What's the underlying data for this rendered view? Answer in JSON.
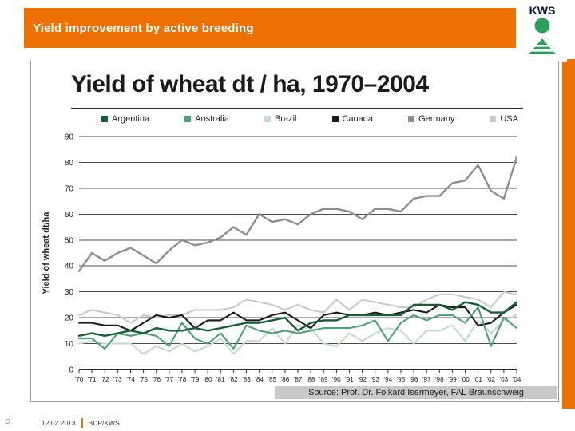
{
  "slide": {
    "header": {
      "title": "Yield improvement by active breeding"
    },
    "logo": {
      "text": "KWS"
    },
    "footer": {
      "page_number": "5",
      "date": "12.02.2013",
      "department": "BDP/KWS"
    }
  },
  "colors": {
    "accent_orange": "#ED7102",
    "logo_green": "#2F9C5C",
    "source_strip_gray": "#C9C9C9"
  },
  "chart_data": {
    "type": "line",
    "title": "Yield of wheat dt / ha, 1970–2004",
    "ylabel": "Yield of wheat dt/ha",
    "source": "Source: Prof. Dr. Folkard Isermeyer, FAL Braunschweig",
    "ylim": [
      0,
      90
    ],
    "yticks": [
      0,
      10,
      20,
      30,
      40,
      50,
      60,
      70,
      80,
      90
    ],
    "grid": "horizontal",
    "legend_position": "top",
    "xtick_labels": [
      "'70",
      "'71",
      "'72",
      "'73",
      "'74",
      "'75",
      "'76",
      "'77",
      "'78",
      "'79",
      "'80",
      "'81",
      "'82",
      "'83",
      "'84",
      "'85",
      "'86",
      "'87",
      "'88",
      "'89",
      "'90",
      "'91",
      "'92",
      "'93",
      "'94",
      "'95",
      "'96",
      "'97",
      "'98",
      "'99",
      "'00",
      "'01",
      "'02",
      "'03",
      "'04"
    ],
    "series": [
      {
        "name": "Argentina",
        "color": "#175C35",
        "stroke_width": 2.4,
        "values": [
          13,
          14,
          13,
          14,
          15,
          14,
          16,
          15,
          15,
          16,
          15,
          16,
          17,
          18,
          18,
          19,
          20,
          15,
          18,
          19,
          19,
          21,
          21,
          21,
          21,
          21,
          25,
          25,
          25,
          23,
          26,
          25,
          22,
          22,
          26
        ]
      },
      {
        "name": "Australia",
        "color": "#4F9F7B",
        "stroke_width": 2.1,
        "values": [
          12,
          12,
          8,
          14,
          13,
          14,
          13,
          9,
          18,
          12,
          10,
          14,
          8,
          17,
          15,
          14,
          15,
          14,
          15,
          16,
          16,
          16,
          17,
          19,
          11,
          18,
          21,
          19,
          21,
          21,
          18,
          24,
          9,
          20,
          16
        ]
      },
      {
        "name": "Brazil",
        "color": "#C7D9CD",
        "stroke_width": 2.1,
        "values": [
          10,
          11,
          10,
          10,
          10,
          6,
          9,
          7,
          10,
          7,
          9,
          12,
          6,
          11,
          11,
          16,
          10,
          17,
          16,
          10,
          9,
          14,
          11,
          14,
          16,
          15,
          10,
          15,
          15,
          17,
          11,
          19,
          14,
          19,
          21
        ]
      },
      {
        "name": "Canada",
        "color": "#1A1A1A",
        "stroke_width": 2.1,
        "values": [
          18,
          18,
          17,
          17,
          15,
          18,
          21,
          20,
          21,
          16,
          19,
          19,
          22,
          19,
          19,
          21,
          22,
          19,
          16,
          21,
          22,
          21,
          21,
          22,
          21,
          22,
          23,
          22,
          25,
          24,
          24,
          17,
          18,
          22,
          25
        ]
      },
      {
        "name": "Germany",
        "color": "#8F8F8F",
        "stroke_width": 2.4,
        "values": [
          38,
          45,
          42,
          45,
          47,
          44,
          41,
          46,
          50,
          48,
          49,
          51,
          55,
          52,
          60,
          57,
          58,
          56,
          60,
          62,
          62,
          61,
          58,
          62,
          62,
          61,
          66,
          67,
          67,
          72,
          73,
          79,
          69,
          66,
          82
        ]
      },
      {
        "name": "USA",
        "color": "#C9C9C9",
        "stroke_width": 2.1,
        "values": [
          21,
          23,
          22,
          21,
          18,
          21,
          20,
          21,
          21,
          23,
          23,
          23,
          24,
          27,
          26,
          25,
          23,
          25,
          23,
          22,
          27,
          23,
          27,
          26,
          25,
          24,
          24,
          27,
          29,
          29,
          28,
          27,
          24,
          30,
          29
        ]
      }
    ]
  }
}
